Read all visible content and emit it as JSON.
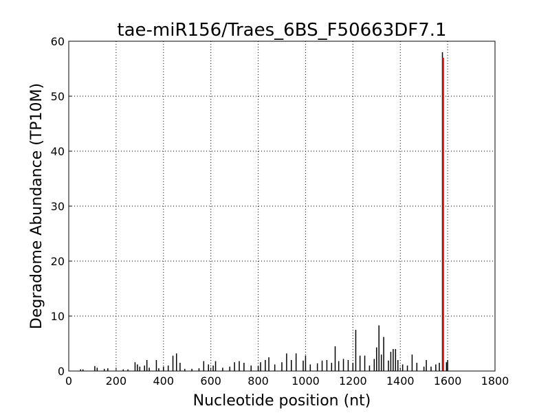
{
  "chart_data": {
    "type": "spike",
    "title": "tae-miR156/Traes_6BS_F50663DF7.1",
    "xlabel": "Nucleotide position (nt)",
    "ylabel": "Degradome Abundance (TP10M)",
    "xlim": [
      0,
      1800
    ],
    "xticks": [
      0,
      200,
      400,
      600,
      800,
      1000,
      1200,
      1400,
      1600,
      1800
    ],
    "ylim": [
      0,
      60
    ],
    "yticks": [
      0,
      10,
      20,
      30,
      40,
      50,
      60
    ],
    "grid": true,
    "series": [
      {
        "color": "#000000",
        "x": [
          50,
          60,
          110,
          120,
          150,
          165,
          230,
          250,
          280,
          290,
          300,
          320,
          330,
          340,
          370,
          380,
          400,
          420,
          440,
          455,
          470,
          490,
          520,
          550,
          570,
          590,
          610,
          620,
          650,
          680,
          700,
          720,
          740,
          770,
          800,
          810,
          830,
          845,
          870,
          900,
          920,
          940,
          960,
          990,
          1000,
          1020,
          1050,
          1070,
          1090,
          1110,
          1125,
          1140,
          1160,
          1180,
          1200,
          1212,
          1230,
          1250,
          1270,
          1290,
          1300,
          1310,
          1320,
          1330,
          1350,
          1360,
          1370,
          1380,
          1390,
          1410,
          1430,
          1450,
          1470,
          1500,
          1510,
          1530,
          1550,
          1565,
          1578,
          1595,
          1600
        ],
        "values": [
          0.3,
          0.3,
          0.9,
          0.6,
          0.4,
          0.5,
          0.3,
          0.3,
          1.6,
          1.2,
          0.8,
          1.0,
          2.0,
          0.6,
          2.0,
          0.5,
          0.8,
          1.0,
          2.8,
          3.2,
          1.5,
          0.4,
          0.4,
          0.5,
          1.8,
          1.2,
          1.0,
          1.8,
          0.6,
          0.8,
          1.6,
          1.8,
          1.5,
          1.0,
          0.9,
          1.6,
          2.0,
          2.5,
          1.2,
          1.6,
          3.2,
          2.0,
          3.2,
          1.9,
          2.8,
          1.2,
          1.4,
          1.9,
          2.0,
          1.5,
          4.5,
          1.8,
          2.2,
          2.0,
          1.5,
          7.5,
          2.8,
          2.8,
          1.0,
          2.2,
          4.3,
          8.3,
          3.0,
          6.2,
          1.9,
          3.5,
          4.0,
          4.0,
          2.0,
          1.2,
          1.0,
          3.0,
          1.5,
          0.8,
          2.0,
          0.8,
          1.2,
          1.5,
          58,
          1.6,
          2.0
        ]
      },
      {
        "color": "#ff0000",
        "x": [
          1581
        ],
        "values": [
          57
        ]
      }
    ]
  }
}
